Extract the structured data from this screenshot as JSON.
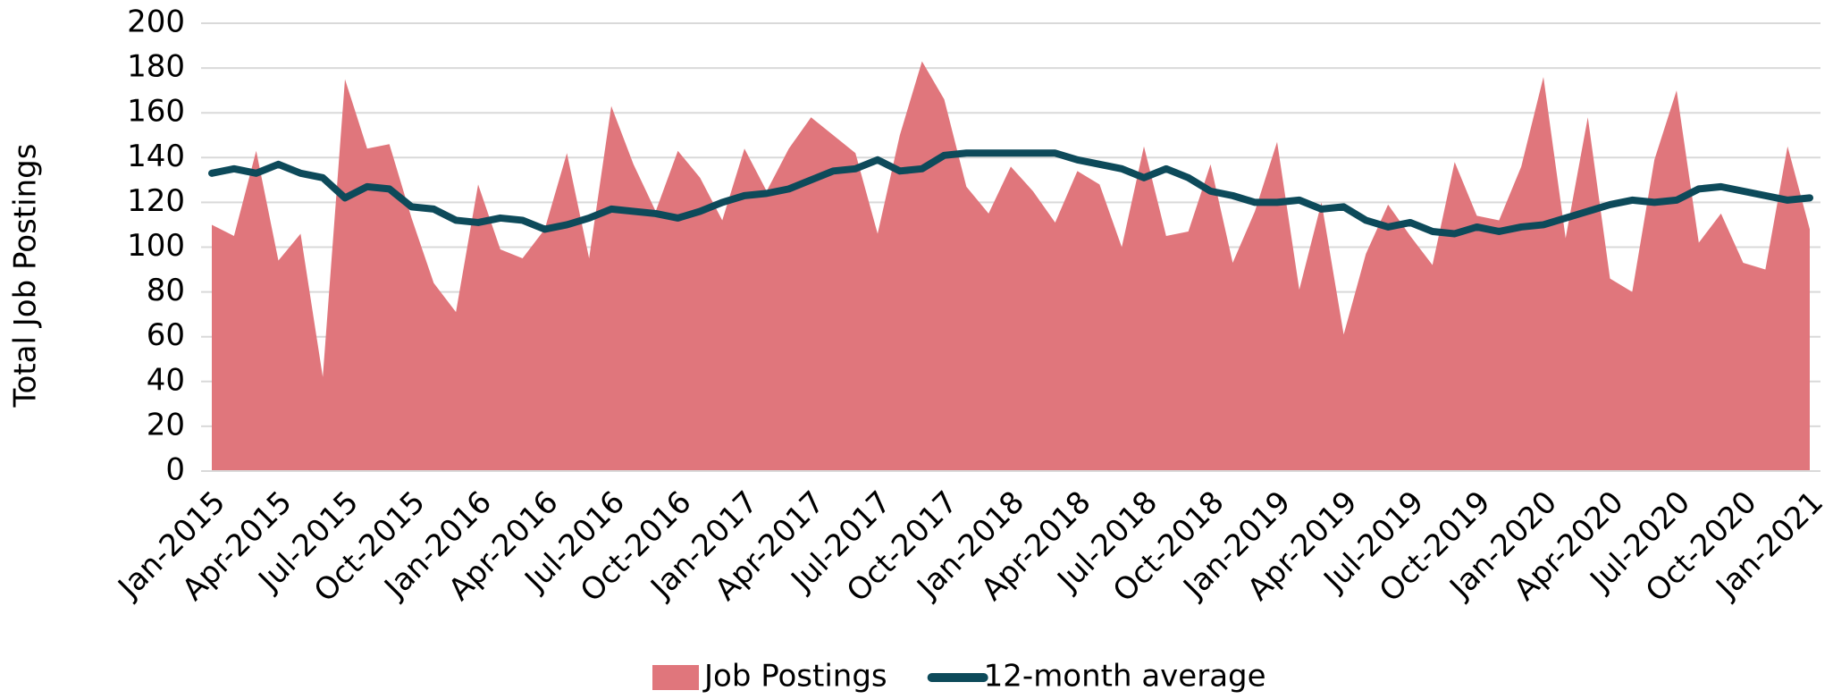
{
  "chart_data": {
    "type": "area_line",
    "y_label": "Total Job Postings",
    "categories": [
      "Jan-2015",
      null,
      null,
      "Apr-2015",
      null,
      null,
      "Jul-2015",
      null,
      null,
      "Oct-2015",
      null,
      null,
      "Jan-2016",
      null,
      null,
      "Apr-2016",
      null,
      null,
      "Jul-2016",
      null,
      null,
      "Oct-2016",
      null,
      null,
      "Jan-2017",
      null,
      null,
      "Apr-2017",
      null,
      null,
      "Jul-2017",
      null,
      null,
      "Oct-2017",
      null,
      null,
      "Jan-2018",
      null,
      null,
      "Apr-2018",
      null,
      null,
      "Jul-2018",
      null,
      null,
      "Oct-2018",
      null,
      null,
      "Jan-2019",
      null,
      null,
      "Apr-2019",
      null,
      null,
      "Jul-2019",
      null,
      null,
      "Oct-2019",
      null,
      null,
      "Jan-2020",
      null,
      null,
      "Apr-2020",
      null,
      null,
      "Jul-2020",
      null,
      null,
      "Oct-2020",
      null,
      null,
      "Jan-2021"
    ],
    "series": [
      {
        "name": "Job Postings",
        "kind": "area",
        "color": "#e0767c",
        "values": [
          110,
          105,
          143,
          94,
          106,
          42,
          175,
          144,
          146,
          113,
          84,
          71,
          128,
          99,
          95,
          108,
          142,
          95,
          163,
          137,
          116,
          143,
          131,
          112,
          144,
          125,
          144,
          158,
          150,
          142,
          106,
          150,
          183,
          166,
          127,
          115,
          136,
          125,
          111,
          134,
          128,
          100,
          145,
          105,
          107,
          137,
          93,
          116,
          147,
          81,
          120,
          61,
          97,
          119,
          105,
          92,
          138,
          114,
          112,
          136,
          176,
          104,
          158,
          86,
          80,
          139,
          170,
          102,
          115,
          93,
          90,
          145,
          108
        ]
      },
      {
        "name": "12-month average",
        "kind": "line",
        "color": "#0d4a5a",
        "values": [
          133,
          135,
          133,
          137,
          133,
          131,
          122,
          127,
          126,
          118,
          117,
          112,
          111,
          113,
          112,
          108,
          110,
          113,
          117,
          116,
          115,
          113,
          116,
          120,
          123,
          124,
          126,
          130,
          134,
          135,
          139,
          134,
          135,
          141,
          142,
          142,
          142,
          142,
          142,
          139,
          137,
          135,
          131,
          135,
          131,
          125,
          123,
          120,
          120,
          121,
          117,
          118,
          112,
          109,
          111,
          107,
          106,
          109,
          107,
          109,
          110,
          113,
          116,
          119,
          121,
          120,
          121,
          126,
          127,
          125,
          123,
          121,
          122
        ]
      }
    ],
    "ylim": [
      0,
      200
    ],
    "yticks": [
      0,
      20,
      40,
      60,
      80,
      100,
      120,
      140,
      160,
      180,
      200
    ],
    "grid": true,
    "legend": "bottom"
  }
}
